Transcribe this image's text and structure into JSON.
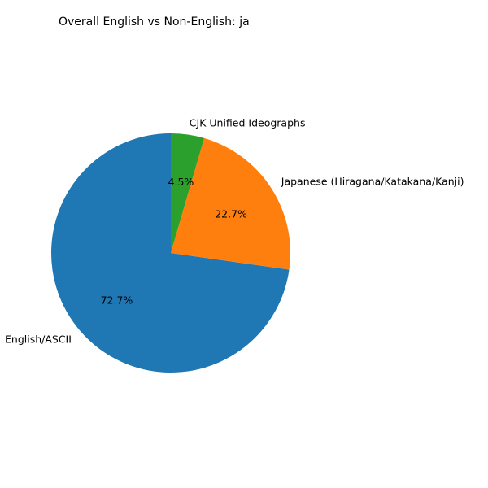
{
  "chart_data": {
    "type": "pie",
    "title": "Overall English vs Non-English: ja",
    "categories": [
      "English/ASCII",
      "Japanese (Hiragana/Katakana/Kanji)",
      "CJK Unified Ideographs"
    ],
    "values": [
      72.7,
      22.7,
      4.5
    ],
    "percent_labels": [
      "72.7%",
      "22.7%",
      "4.5%"
    ],
    "colors": [
      "#1f77b4",
      "#ff7f0e",
      "#2ca02c"
    ],
    "start_angle_deg": 90,
    "direction": "counterclockwise",
    "legend": "none"
  }
}
